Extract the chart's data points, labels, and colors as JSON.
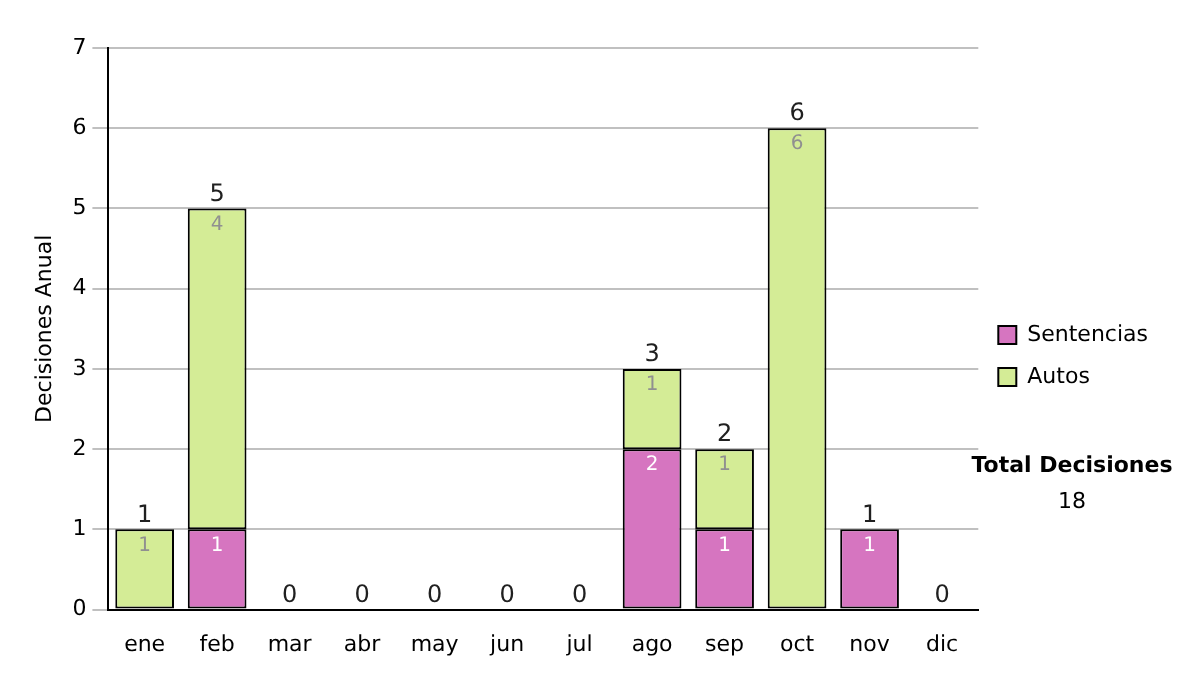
{
  "chart_data": {
    "type": "bar",
    "stacked": true,
    "ylabel": "Decisiones Anual",
    "categories": [
      "ene",
      "feb",
      "mar",
      "abr",
      "may",
      "jun",
      "jul",
      "ago",
      "sep",
      "oct",
      "nov",
      "dic"
    ],
    "series": [
      {
        "name": "Sentencias",
        "color": "#d675c0",
        "values": [
          0,
          1,
          0,
          0,
          0,
          0,
          0,
          2,
          1,
          0,
          1,
          0
        ],
        "value_labels": [
          null,
          "1",
          null,
          null,
          null,
          null,
          null,
          "2",
          "1",
          null,
          "1",
          null
        ]
      },
      {
        "name": "Autos",
        "color": "#d4ec96",
        "values": [
          1,
          4,
          0,
          0,
          0,
          0,
          0,
          1,
          1,
          6,
          0,
          0
        ],
        "value_labels": [
          "1",
          "4",
          null,
          null,
          null,
          null,
          null,
          "1",
          "1",
          "6",
          null,
          null
        ]
      }
    ],
    "totals": [
      "1",
      "5",
      "0",
      "0",
      "0",
      "0",
      "0",
      "3",
      "2",
      "6",
      "1",
      "0"
    ],
    "ylim": [
      0,
      7
    ],
    "yticks": [
      0,
      1,
      2,
      3,
      4,
      5,
      6,
      7
    ],
    "grid": "y",
    "legend": "right",
    "annotations": [
      "Total Decisiones",
      "18"
    ]
  }
}
